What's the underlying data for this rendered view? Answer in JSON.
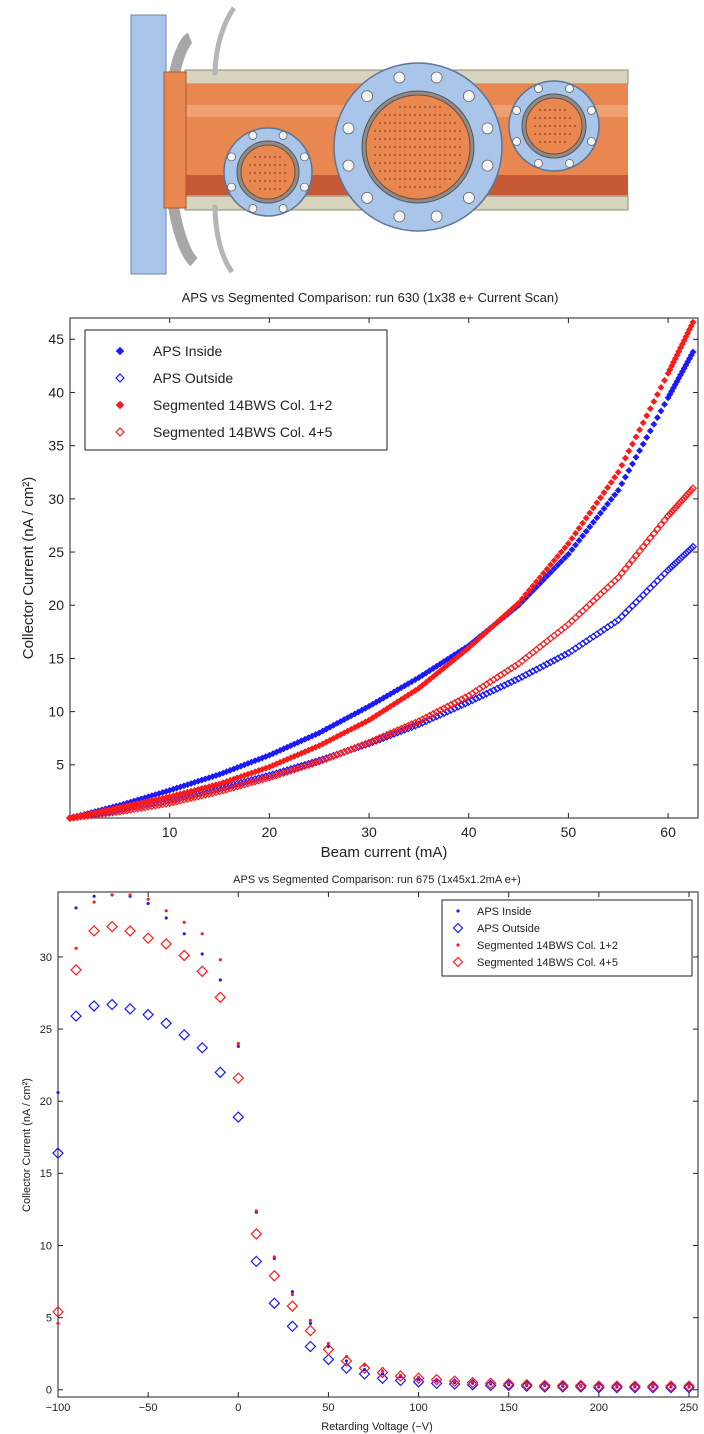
{
  "colors": {
    "blue": "#1a1aff",
    "red": "#ff1a1a",
    "chamber_orange": "#e8874f",
    "flange_blue": "#a9c6ea",
    "rail_tan": "#d8d3bd"
  },
  "diagram": {
    "description_icon": "vacuum-chamber-with-flange-ports"
  },
  "chart_data": [
    {
      "type": "scatter",
      "title": "APS vs Segmented Comparison: run 630 (1x38 e+ Current Scan)",
      "xlabel": "Beam current (mA)",
      "ylabel": "Collector Current (nA / cm²)",
      "xlim": [
        0,
        63
      ],
      "ylim": [
        0,
        47
      ],
      "xticks": [
        10,
        20,
        30,
        40,
        50,
        60
      ],
      "yticks": [
        5,
        10,
        15,
        20,
        25,
        30,
        35,
        40,
        45
      ],
      "grid": false,
      "legend_position": "top-left",
      "series": [
        {
          "name": "APS Inside",
          "marker": "filled-diamond",
          "color": "blue",
          "x": [
            0,
            5,
            10,
            15,
            20,
            25,
            30,
            35,
            40,
            45,
            50,
            55,
            60,
            62.5
          ],
          "y": [
            0,
            1.2,
            2.6,
            4.1,
            5.9,
            8,
            10.5,
            13.2,
            16.2,
            20,
            24.8,
            30.8,
            39.5,
            43.8
          ]
        },
        {
          "name": "APS Outside",
          "marker": "open-diamond",
          "color": "blue",
          "x": [
            0,
            5,
            10,
            15,
            20,
            25,
            30,
            35,
            40,
            45,
            50,
            55,
            60,
            62.5
          ],
          "y": [
            0,
            0.8,
            1.7,
            2.8,
            4,
            5.4,
            7,
            8.8,
            10.9,
            13.1,
            15.5,
            18.6,
            23.3,
            25.5
          ]
        },
        {
          "name": "Segmented 14BWS Col. 1+2",
          "marker": "filled-diamond",
          "color": "red",
          "x": [
            0,
            5,
            10,
            15,
            20,
            25,
            30,
            35,
            40,
            45,
            50,
            55,
            60,
            62.5
          ],
          "y": [
            0,
            1,
            2,
            3.2,
            4.8,
            6.8,
            9.2,
            12.2,
            16,
            20.2,
            25.8,
            32.5,
            41.8,
            46.6
          ]
        },
        {
          "name": "Segmented 14BWS Col. 4+5",
          "marker": "open-diamond",
          "color": "red",
          "x": [
            0,
            5,
            10,
            15,
            20,
            25,
            30,
            35,
            40,
            45,
            50,
            55,
            60,
            62.5
          ],
          "y": [
            0,
            0.6,
            1.4,
            2.5,
            3.8,
            5.3,
            7.1,
            9.1,
            11.5,
            14.5,
            18.2,
            22.6,
            28.4,
            31
          ]
        }
      ]
    },
    {
      "type": "scatter",
      "title": "APS vs Segmented Comparison: run 675 (1x45x1.2mA e+)",
      "xlabel": "Retarding Voltage (−V)",
      "ylabel": "Collector Current (nA / cm²)",
      "xlim": [
        -100,
        255
      ],
      "ylim": [
        -0.5,
        34.5
      ],
      "xticks": [
        -100,
        -50,
        0,
        50,
        100,
        150,
        200,
        250
      ],
      "yticks": [
        0,
        5,
        10,
        15,
        20,
        25,
        30
      ],
      "grid": false,
      "legend_position": "top-right",
      "x": [
        -100,
        -90,
        -80,
        -70,
        -60,
        -50,
        -40,
        -30,
        -20,
        -10,
        0,
        10,
        20,
        30,
        40,
        50,
        60,
        70,
        80,
        90,
        100,
        110,
        120,
        130,
        140,
        150,
        160,
        170,
        180,
        190,
        200,
        210,
        220,
        230,
        240,
        250
      ],
      "series": [
        {
          "name": "APS Inside",
          "marker": "dot",
          "color": "blue",
          "y": [
            20.6,
            33.4,
            34.2,
            34.3,
            34.2,
            33.7,
            32.7,
            31.6,
            30.2,
            28.4,
            23.8,
            12.3,
            9.1,
            6.8,
            4.6,
            3,
            2,
            1.4,
            1.1,
            0.9,
            0.7,
            0.6,
            0.5,
            0.45,
            0.4,
            0.35,
            0.3,
            0.3,
            0.25,
            0.25,
            0.2,
            0.2,
            0.2,
            0.2,
            0.2,
            0.2
          ]
        },
        {
          "name": "APS Outside",
          "marker": "open-diamond",
          "color": "blue",
          "y": [
            16.4,
            25.9,
            26.6,
            26.7,
            26.4,
            26,
            25.4,
            24.6,
            23.7,
            22,
            18.9,
            8.9,
            6,
            4.4,
            3,
            2.1,
            1.5,
            1.1,
            0.8,
            0.65,
            0.55,
            0.45,
            0.4,
            0.35,
            0.3,
            0.3,
            0.25,
            0.2,
            0.2,
            0.2,
            0.15,
            0.15,
            0.15,
            0.15,
            0.15,
            0.15
          ]
        },
        {
          "name": "Segmented 14BWS Col. 1+2",
          "marker": "dot",
          "color": "red",
          "y": [
            4.6,
            30.6,
            33.8,
            34.3,
            34.3,
            34,
            33.2,
            32.4,
            31.6,
            29.8,
            24,
            12.4,
            9.2,
            6.6,
            4.8,
            3.2,
            2.3,
            1.7,
            1.3,
            1,
            0.85,
            0.7,
            0.6,
            0.55,
            0.5,
            0.45,
            0.4,
            0.35,
            0.35,
            0.3,
            0.3,
            0.3,
            0.3,
            0.3,
            0.3,
            0.3
          ]
        },
        {
          "name": "Segmented 14BWS Col. 4+5",
          "marker": "open-diamond",
          "color": "red",
          "y": [
            5.4,
            29.1,
            31.8,
            32.1,
            31.8,
            31.3,
            30.9,
            30.1,
            29,
            27.2,
            21.6,
            10.8,
            7.9,
            5.8,
            4.1,
            2.8,
            2,
            1.5,
            1.2,
            0.95,
            0.8,
            0.7,
            0.6,
            0.5,
            0.45,
            0.4,
            0.35,
            0.3,
            0.3,
            0.3,
            0.25,
            0.25,
            0.25,
            0.25,
            0.25,
            0.25
          ]
        }
      ]
    }
  ]
}
